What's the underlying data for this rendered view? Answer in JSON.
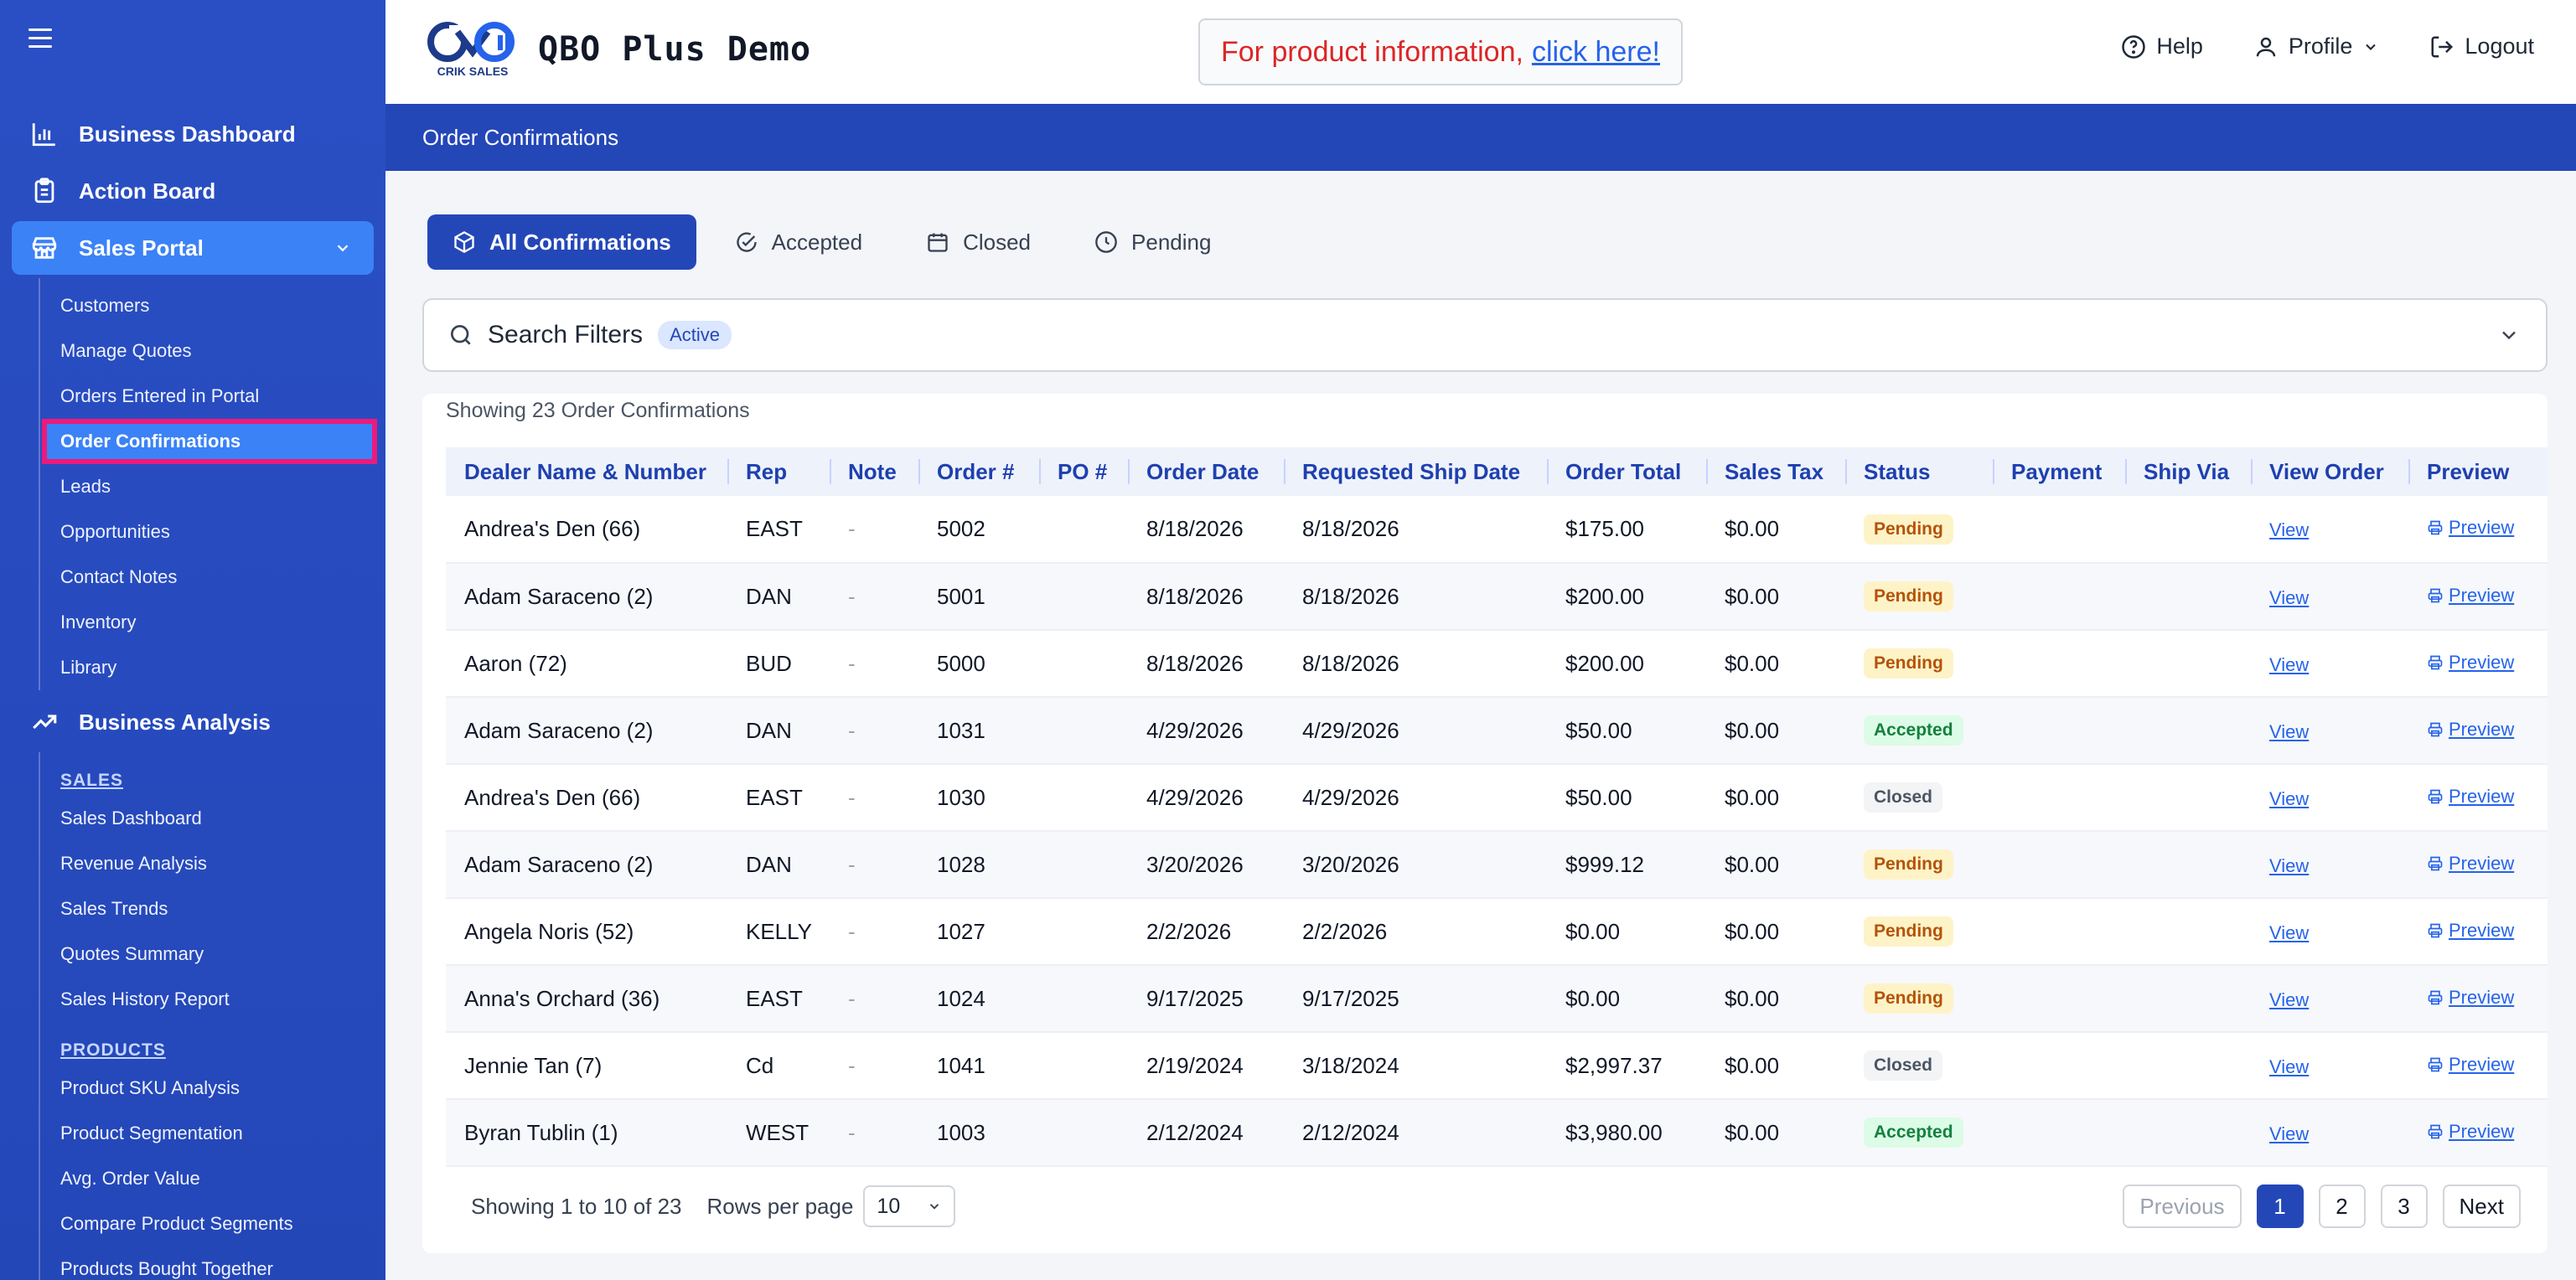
{
  "header": {
    "app_title": "QBO Plus Demo",
    "logo_text": "CRIK SALES",
    "promo_text": "For product information,",
    "promo_link": "click here!",
    "help": "Help",
    "profile": "Profile",
    "logout": "Logout"
  },
  "sidebar": {
    "top_items": [
      {
        "label": "Business Dashboard",
        "icon": "bar-chart-icon"
      },
      {
        "label": "Action Board",
        "icon": "clipboard-icon"
      },
      {
        "label": "Sales Portal",
        "icon": "store-icon"
      }
    ],
    "sales_portal_items": [
      "Customers",
      "Manage Quotes",
      "Orders Entered in Portal",
      "Order Confirmations",
      "Leads",
      "Opportunities",
      "Contact Notes",
      "Inventory",
      "Library"
    ],
    "analysis_label": "Business Analysis",
    "sales_header": "SALES",
    "sales_items": [
      "Sales Dashboard",
      "Revenue Analysis",
      "Sales Trends",
      "Quotes Summary",
      "Sales History Report"
    ],
    "products_header": "PRODUCTS",
    "products_items": [
      "Product SKU Analysis",
      "Product Segmentation",
      "Avg. Order Value",
      "Compare Product Segments",
      "Products Bought Together"
    ]
  },
  "page_title": "Order Confirmations",
  "tabs": [
    "All Confirmations",
    "Accepted",
    "Closed",
    "Pending"
  ],
  "filters": {
    "label": "Search Filters",
    "badge": "Active"
  },
  "showing_count": "Showing 23 Order Confirmations",
  "table": {
    "columns": [
      "Dealer Name & Number",
      "Rep",
      "Note",
      "Order #",
      "PO #",
      "Order Date",
      "Requested Ship Date",
      "Order Total",
      "Sales Tax",
      "Status",
      "Payment",
      "Ship Via",
      "View Order",
      "Preview"
    ],
    "rows": [
      {
        "dealer": "Andrea's Den (66)",
        "rep": "EAST",
        "note": "-",
        "order": "5002",
        "po": "",
        "date": "8/18/2026",
        "ship": "8/18/2026",
        "total": "$175.00",
        "tax": "$0.00",
        "status": "Pending"
      },
      {
        "dealer": "Adam Saraceno (2)",
        "rep": "DAN",
        "note": "-",
        "order": "5001",
        "po": "",
        "date": "8/18/2026",
        "ship": "8/18/2026",
        "total": "$200.00",
        "tax": "$0.00",
        "status": "Pending"
      },
      {
        "dealer": "Aaron (72)",
        "rep": "BUD",
        "note": "-",
        "order": "5000",
        "po": "",
        "date": "8/18/2026",
        "ship": "8/18/2026",
        "total": "$200.00",
        "tax": "$0.00",
        "status": "Pending"
      },
      {
        "dealer": "Adam Saraceno (2)",
        "rep": "DAN",
        "note": "-",
        "order": "1031",
        "po": "",
        "date": "4/29/2026",
        "ship": "4/29/2026",
        "total": "$50.00",
        "tax": "$0.00",
        "status": "Accepted"
      },
      {
        "dealer": "Andrea's Den (66)",
        "rep": "EAST",
        "note": "-",
        "order": "1030",
        "po": "",
        "date": "4/29/2026",
        "ship": "4/29/2026",
        "total": "$50.00",
        "tax": "$0.00",
        "status": "Closed"
      },
      {
        "dealer": "Adam Saraceno (2)",
        "rep": "DAN",
        "note": "-",
        "order": "1028",
        "po": "",
        "date": "3/20/2026",
        "ship": "3/20/2026",
        "total": "$999.12",
        "tax": "$0.00",
        "status": "Pending"
      },
      {
        "dealer": "Angela Noris (52)",
        "rep": "KELLY",
        "note": "-",
        "order": "1027",
        "po": "",
        "date": "2/2/2026",
        "ship": "2/2/2026",
        "total": "$0.00",
        "tax": "$0.00",
        "status": "Pending"
      },
      {
        "dealer": "Anna's Orchard (36)",
        "rep": "EAST",
        "note": "-",
        "order": "1024",
        "po": "",
        "date": "9/17/2025",
        "ship": "9/17/2025",
        "total": "$0.00",
        "tax": "$0.00",
        "status": "Pending"
      },
      {
        "dealer": "Jennie Tan (7)",
        "rep": "Cd",
        "note": "-",
        "order": "1041",
        "po": "",
        "date": "2/19/2024",
        "ship": "3/18/2024",
        "total": "$2,997.37",
        "tax": "$0.00",
        "status": "Closed"
      },
      {
        "dealer": "Byran Tublin (1)",
        "rep": "WEST",
        "note": "-",
        "order": "1003",
        "po": "",
        "date": "2/12/2024",
        "ship": "2/12/2024",
        "total": "$3,980.00",
        "tax": "$0.00",
        "status": "Accepted"
      }
    ],
    "view_label": "View",
    "preview_label": "Preview"
  },
  "footer": {
    "showing": "Showing 1 to 10 of 23",
    "rows_per_page_label": "Rows per page",
    "rows_per_page": "10",
    "prev": "Previous",
    "pages": [
      "1",
      "2",
      "3"
    ],
    "next": "Next"
  }
}
